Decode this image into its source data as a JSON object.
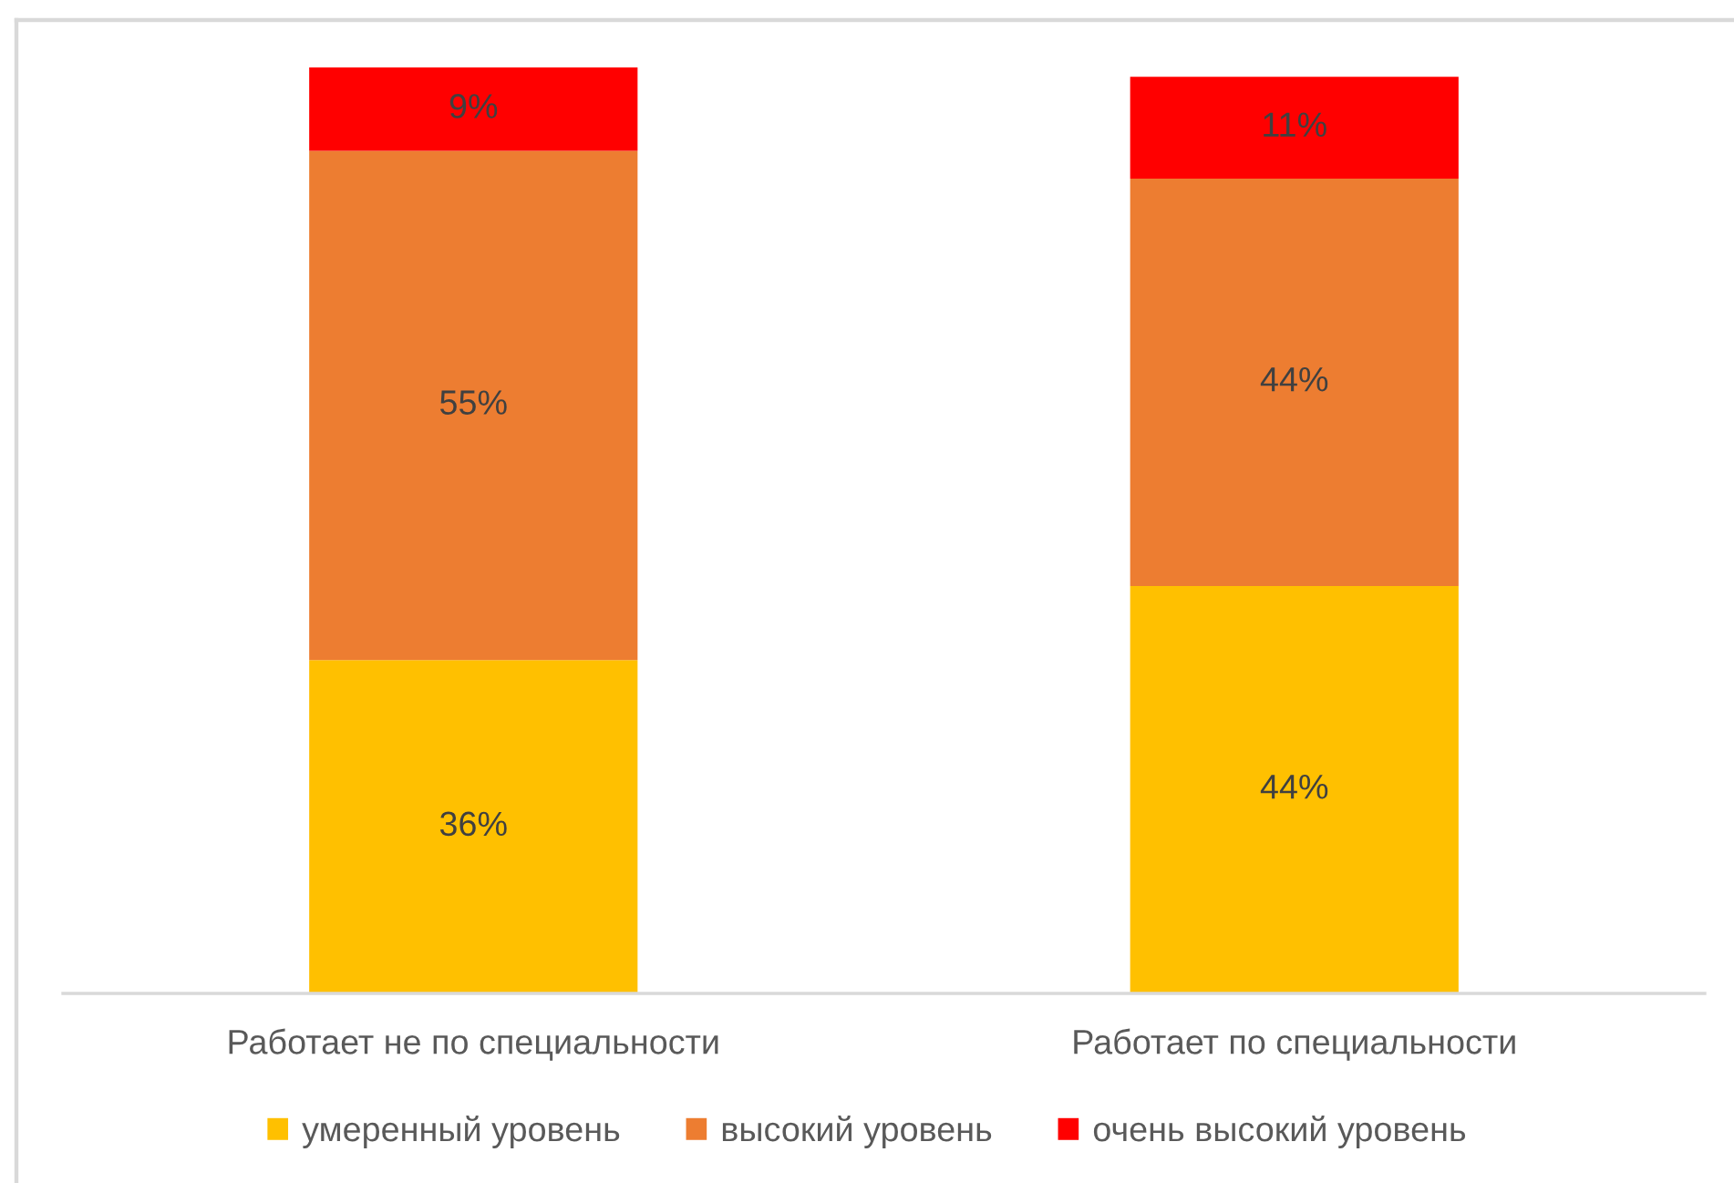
{
  "chart_data": {
    "type": "bar",
    "stacked": true,
    "categories": [
      "Работает не по специальности",
      "Работает по специальности"
    ],
    "series": [
      {
        "name": "умеренный уровень",
        "color": "#ffc000",
        "values": [
          36,
          44
        ],
        "value_labels": [
          "36%",
          "44%"
        ]
      },
      {
        "name": "высокий уровень",
        "color": "#ed7d31",
        "values": [
          55,
          44
        ],
        "value_labels": [
          "55%",
          "44%"
        ]
      },
      {
        "name": "очень высокий уровень",
        "color": "#ff0000",
        "values": [
          9,
          11
        ],
        "value_labels": [
          "9%",
          "11%"
        ]
      }
    ],
    "ylim": [
      0,
      100
    ],
    "tick_labels": "x",
    "legend": "bottom"
  }
}
